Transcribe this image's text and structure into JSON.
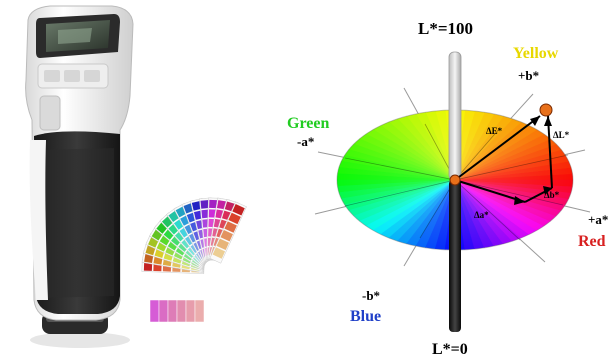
{
  "axis": {
    "l_top": "L*=100",
    "l_bottom": "L*=0",
    "plus_b": "+b*",
    "minus_b": "-b*",
    "plus_a": "+a*",
    "minus_a": "-a*"
  },
  "hues": {
    "yellow": "Yellow",
    "green": "Green",
    "blue": "Blue",
    "red": "Red"
  },
  "deltas": {
    "delta_e": "ΔE*",
    "delta_l": "ΔL*",
    "delta_b": "Δb*",
    "delta_a": "Δa*"
  },
  "colors": {
    "yellow": "#e8d800",
    "green": "#22cc22",
    "blue": "#1f3fc8",
    "red": "#d82020",
    "point": "#e8701a"
  }
}
